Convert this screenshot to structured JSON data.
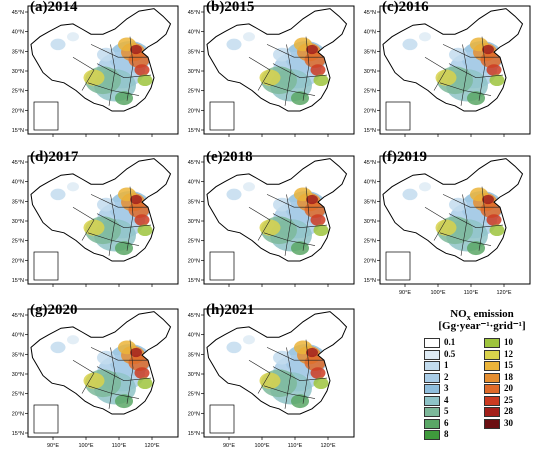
{
  "panels": [
    {
      "label": "(a)2014",
      "show_lon_labels": false
    },
    {
      "label": "(b)2015",
      "show_lon_labels": false
    },
    {
      "label": "(c)2016",
      "show_lon_labels": false
    },
    {
      "label": "(d)2017",
      "show_lon_labels": false
    },
    {
      "label": "(e)2018",
      "show_lon_labels": false
    },
    {
      "label": "(f)2019",
      "show_lon_labels": true
    },
    {
      "label": "(g)2020",
      "show_lon_labels": true
    },
    {
      "label": "(h)2021",
      "show_lon_labels": true
    }
  ],
  "axes": {
    "lat_ticks": [
      "45°N",
      "40°N",
      "35°N",
      "30°N",
      "25°N",
      "20°N",
      "15°N"
    ],
    "lon_ticks": [
      "90°E",
      "100°E",
      "110°E",
      "120°E"
    ]
  },
  "legend": {
    "title": "NO",
    "title_sub": "x",
    "title_suffix": " emission",
    "units": "[Gg·year⁻¹·grid⁻¹]",
    "left_column": [
      {
        "value": "0.1",
        "color": "#ffffff"
      },
      {
        "value": "0.5",
        "color": "#deebf5"
      },
      {
        "value": "1",
        "color": "#c3dcee"
      },
      {
        "value": "2",
        "color": "#a9cde8"
      },
      {
        "value": "3",
        "color": "#8fbedd"
      },
      {
        "value": "4",
        "color": "#8ec3c7"
      },
      {
        "value": "5",
        "color": "#7db89a"
      },
      {
        "value": "6",
        "color": "#5aa766"
      },
      {
        "value": "8",
        "color": "#3f9a3c"
      }
    ],
    "right_column": [
      {
        "value": "10",
        "color": "#9ec43d"
      },
      {
        "value": "12",
        "color": "#d9d24c"
      },
      {
        "value": "15",
        "color": "#ebb43a"
      },
      {
        "value": "18",
        "color": "#e58e31"
      },
      {
        "value": "20",
        "color": "#df6a29"
      },
      {
        "value": "25",
        "color": "#cc3b22"
      },
      {
        "value": "28",
        "color": "#a3201b"
      },
      {
        "value": "30",
        "color": "#6b0f12"
      }
    ]
  }
}
